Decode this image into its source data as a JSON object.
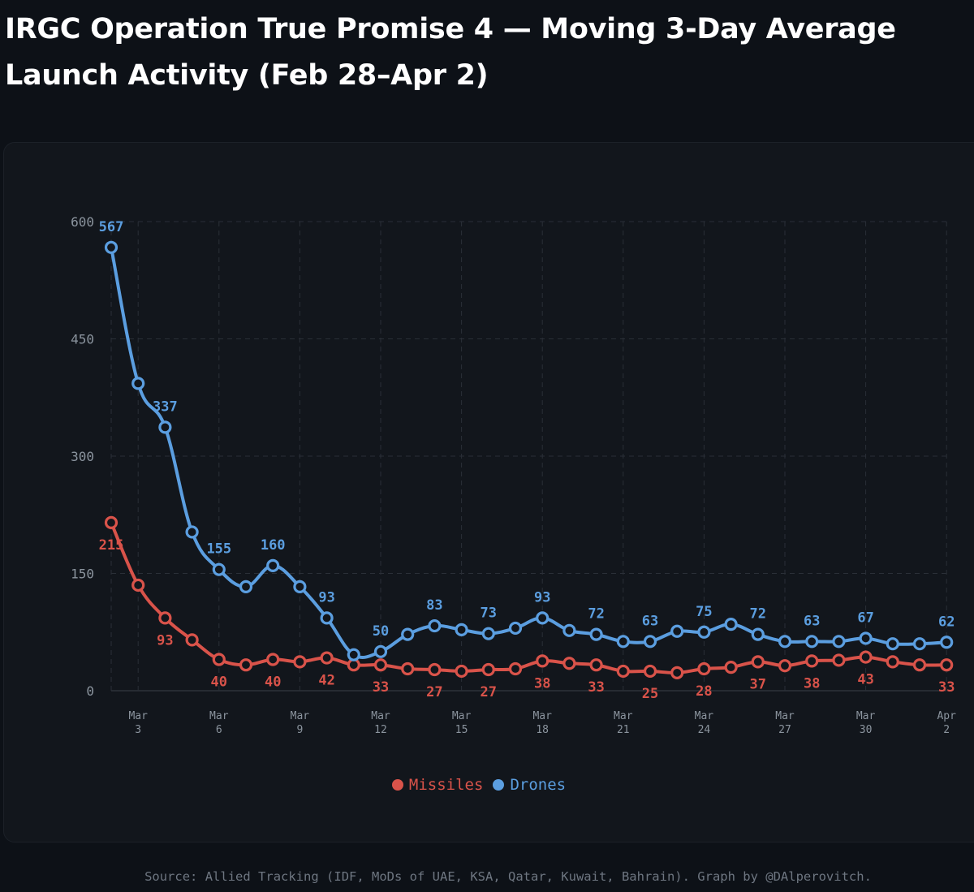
{
  "title": "IRGC Operation True Promise 4 — Moving 3-Day Average Launch Activity (Feb 28–Apr 2)",
  "source": "Source: Allied Tracking (IDF, MoDs of UAE, KSA, Qatar, Kuwait, Bahrain). Graph by @DAlperovitch.",
  "colors": {
    "background": "#0d1117",
    "panel": "#12161c",
    "missiles": "#d9534a",
    "drones": "#5b9ee0",
    "grid": "#2a2f37",
    "axis_text": "#8b949e"
  },
  "chart_data": {
    "type": "line",
    "title": "IRGC Operation True Promise 4 — Moving 3-Day Average Launch Activity (Feb 28–Apr 2)",
    "xlabel": "",
    "ylabel": "",
    "ylim": [
      0,
      600
    ],
    "yticks": [
      0,
      150,
      300,
      450,
      600
    ],
    "grid": true,
    "legend_position": "bottom-center",
    "x": [
      "Mar 2",
      "Mar 3",
      "Mar 4",
      "Mar 5",
      "Mar 6",
      "Mar 7",
      "Mar 8",
      "Mar 9",
      "Mar 10",
      "Mar 11",
      "Mar 12",
      "Mar 13",
      "Mar 14",
      "Mar 15",
      "Mar 16",
      "Mar 17",
      "Mar 18",
      "Mar 19",
      "Mar 20",
      "Mar 21",
      "Mar 22",
      "Mar 23",
      "Mar 24",
      "Mar 25",
      "Mar 26",
      "Mar 27",
      "Mar 28",
      "Mar 29",
      "Mar 30",
      "Mar 31",
      "Apr 1",
      "Apr 2"
    ],
    "xticks": [
      {
        "x": "Mar 3",
        "line1": "Mar",
        "line2": "3"
      },
      {
        "x": "Mar 6",
        "line1": "Mar",
        "line2": "6"
      },
      {
        "x": "Mar 9",
        "line1": "Mar",
        "line2": "9"
      },
      {
        "x": "Mar 12",
        "line1": "Mar",
        "line2": "12"
      },
      {
        "x": "Mar 15",
        "line1": "Mar",
        "line2": "15"
      },
      {
        "x": "Mar 18",
        "line1": "Mar",
        "line2": "18"
      },
      {
        "x": "Mar 21",
        "line1": "Mar",
        "line2": "21"
      },
      {
        "x": "Mar 24",
        "line1": "Mar",
        "line2": "24"
      },
      {
        "x": "Mar 27",
        "line1": "Mar",
        "line2": "27"
      },
      {
        "x": "Mar 30",
        "line1": "Mar",
        "line2": "30"
      },
      {
        "x": "Apr 2",
        "line1": "Apr",
        "line2": "2"
      }
    ],
    "series": [
      {
        "name": "Missiles",
        "color": "#d9534a",
        "values": [
          215,
          135,
          93,
          65,
          40,
          33,
          40,
          37,
          42,
          33,
          33,
          28,
          27,
          25,
          27,
          28,
          38,
          35,
          33,
          25,
          25,
          23,
          28,
          30,
          37,
          32,
          38,
          39,
          43,
          37,
          33,
          33
        ],
        "labels": [
          {
            "x": "Mar 2",
            "text": "215",
            "pos": "below"
          },
          {
            "x": "Mar 4",
            "text": "93",
            "pos": "below"
          },
          {
            "x": "Mar 6",
            "text": "40",
            "pos": "below"
          },
          {
            "x": "Mar 8",
            "text": "40",
            "pos": "below"
          },
          {
            "x": "Mar 10",
            "text": "42",
            "pos": "below"
          },
          {
            "x": "Mar 12",
            "text": "33",
            "pos": "below"
          },
          {
            "x": "Mar 14",
            "text": "27",
            "pos": "below"
          },
          {
            "x": "Mar 16",
            "text": "27",
            "pos": "below"
          },
          {
            "x": "Mar 18",
            "text": "38",
            "pos": "below"
          },
          {
            "x": "Mar 20",
            "text": "33",
            "pos": "below"
          },
          {
            "x": "Mar 22",
            "text": "25",
            "pos": "below"
          },
          {
            "x": "Mar 24",
            "text": "28",
            "pos": "below"
          },
          {
            "x": "Mar 26",
            "text": "37",
            "pos": "below"
          },
          {
            "x": "Mar 28",
            "text": "38",
            "pos": "below"
          },
          {
            "x": "Mar 30",
            "text": "43",
            "pos": "below"
          },
          {
            "x": "Apr 2",
            "text": "33",
            "pos": "below"
          }
        ]
      },
      {
        "name": "Drones",
        "color": "#5b9ee0",
        "values": [
          567,
          393,
          337,
          203,
          155,
          133,
          160,
          133,
          93,
          46,
          50,
          72,
          83,
          78,
          73,
          80,
          93,
          77,
          72,
          63,
          63,
          76,
          75,
          85,
          72,
          63,
          63,
          63,
          67,
          60,
          60,
          62
        ],
        "labels": [
          {
            "x": "Mar 2",
            "text": "567",
            "pos": "above"
          },
          {
            "x": "Mar 4",
            "text": "337",
            "pos": "above"
          },
          {
            "x": "Mar 6",
            "text": "155",
            "pos": "above"
          },
          {
            "x": "Mar 8",
            "text": "160",
            "pos": "above"
          },
          {
            "x": "Mar 10",
            "text": "93",
            "pos": "above"
          },
          {
            "x": "Mar 12",
            "text": "50",
            "pos": "above"
          },
          {
            "x": "Mar 14",
            "text": "83",
            "pos": "above"
          },
          {
            "x": "Mar 16",
            "text": "73",
            "pos": "above"
          },
          {
            "x": "Mar 18",
            "text": "93",
            "pos": "above"
          },
          {
            "x": "Mar 20",
            "text": "72",
            "pos": "above"
          },
          {
            "x": "Mar 22",
            "text": "63",
            "pos": "above"
          },
          {
            "x": "Mar 24",
            "text": "75",
            "pos": "above"
          },
          {
            "x": "Mar 26",
            "text": "72",
            "pos": "above"
          },
          {
            "x": "Mar 28",
            "text": "63",
            "pos": "above"
          },
          {
            "x": "Mar 30",
            "text": "67",
            "pos": "above"
          },
          {
            "x": "Apr 2",
            "text": "62",
            "pos": "above"
          }
        ]
      }
    ]
  }
}
